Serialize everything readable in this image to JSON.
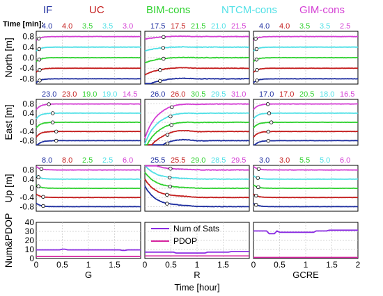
{
  "chart_data": {
    "type": "line",
    "methods": [
      {
        "name": "IF",
        "color": "#1f2fa0"
      },
      {
        "name": "UC",
        "color": "#c41e1e"
      },
      {
        "name": "BIM-cons",
        "color": "#2fd12f"
      },
      {
        "name": "NTCM-cons",
        "color": "#4fe0e6"
      },
      {
        "name": "GIM-cons",
        "color": "#d43fd4"
      }
    ],
    "time_label": "Time [min]:",
    "columns": [
      "G",
      "R",
      "GCRE"
    ],
    "xlabel": "Time [hour]",
    "xlim": [
      0,
      2
    ],
    "xticks": [
      "0",
      "0.5",
      "1",
      "1.5",
      "2"
    ],
    "rows": [
      {
        "ylabel": "North [m]",
        "ylim": [
          -1.0,
          1.0
        ],
        "yticks": [
          "0.8",
          "0.4",
          "0.0",
          "-0.4",
          "-0.8"
        ],
        "times": [
          [
            "4.0",
            "4.0",
            "3.5",
            "3.5",
            "3.0"
          ],
          [
            "17.5",
            "17.5",
            "21.5",
            "21.0",
            "21.5"
          ],
          [
            "4.0",
            "4.0",
            "3.5",
            "3.5",
            "2.5"
          ]
        ]
      },
      {
        "ylabel": "East [m]",
        "ylim": [
          -1.0,
          1.0
        ],
        "yticks": [
          "0.8",
          "0.4",
          "0",
          "-0.4",
          "-0.8"
        ],
        "times": [
          [
            "23.0",
            "23.0",
            "19.0",
            "19.0",
            "14.5"
          ],
          [
            "26.0",
            "26.0",
            "30.5",
            "29.5",
            "31.0"
          ],
          [
            "17.0",
            "17.0",
            "20.5",
            "18.0",
            "16.5"
          ]
        ]
      },
      {
        "ylabel": "Up [m]",
        "ylim": [
          -1.0,
          1.0
        ],
        "yticks": [
          "0.8",
          "0.4",
          "0",
          "-0.4",
          "-0.8"
        ],
        "times": [
          [
            "8.0",
            "8.0",
            "2.5",
            "2.5",
            "6.0"
          ],
          [
            "25.5",
            "25.5",
            "29.0",
            "28.5",
            "29.5"
          ],
          [
            "3.0",
            "3.0",
            "5.5",
            "5.0",
            "6.0"
          ]
        ]
      }
    ],
    "offsets": [
      -0.8,
      -0.4,
      0.0,
      0.4,
      0.8
    ],
    "sats_panel": {
      "ylabel": "Num&PDOP",
      "ylim": [
        0,
        40
      ],
      "yticks": [
        "40",
        "30",
        "20",
        "10",
        "0"
      ],
      "legend": [
        {
          "label": "Num of Sats",
          "color": "#8a2be2"
        },
        {
          "label": "PDOP",
          "color": "#d6249f"
        }
      ],
      "num_sats": [
        9.5,
        7.0,
        30.5
      ],
      "pdop": [
        2.2,
        2.8,
        1.2
      ]
    }
  }
}
